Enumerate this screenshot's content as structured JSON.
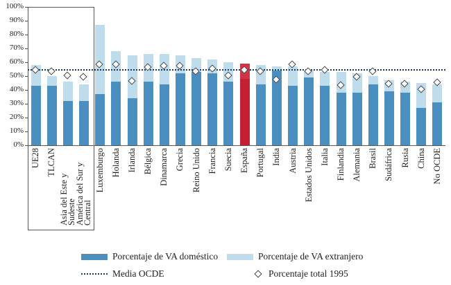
{
  "chart_data": {
    "type": "bar",
    "stacked": true,
    "title": "",
    "xlabel": "",
    "ylabel": "",
    "ylim": [
      0,
      100
    ],
    "grid": false,
    "y_ticks": [
      "0%",
      "10%",
      "20%",
      "30%",
      "40%",
      "50%",
      "60%",
      "70%",
      "80%",
      "90%",
      "100%"
    ],
    "categories": [
      "UE28",
      "TLCAN",
      "Asia del Este y Sudeste",
      "América del Sur y Central",
      "Luxemburgo",
      "Holanda",
      "Irlanda",
      "Bélgica",
      "Dinamarca",
      "Grecia",
      "Reino Unido",
      "Francia",
      "Suecia",
      "España",
      "Portugal",
      "India",
      "Austria",
      "Estados Unidos",
      "Italia",
      "Finlandia",
      "Alemania",
      "Brasil",
      "Sudáfrica",
      "Rusia",
      "China",
      "No OCDE"
    ],
    "series": [
      {
        "name": "Porcentaje de VA doméstico",
        "values": [
          43,
          43,
          32,
          32,
          37,
          46,
          34,
          46,
          44,
          52,
          53,
          52,
          46,
          48,
          44,
          54,
          43,
          49,
          43,
          38,
          38,
          44,
          39,
          38,
          27,
          31
        ]
      },
      {
        "name": "Porcentaje de VA extranjero",
        "values": [
          15,
          7,
          14,
          12,
          50,
          22,
          31,
          20,
          22,
          13,
          10,
          10,
          14,
          11,
          14,
          3,
          14,
          5,
          10,
          15,
          14,
          6,
          8,
          8,
          18,
          13
        ]
      },
      {
        "name": "Porcentaje total 1995",
        "type": "marker",
        "values": [
          54,
          53,
          50,
          49,
          58,
          58,
          46,
          56,
          57,
          57,
          53,
          55,
          50,
          54,
          53,
          47,
          58,
          53,
          54,
          43,
          49,
          53,
          44,
          44,
          40,
          45
        ]
      }
    ],
    "media_ocde_value": 55,
    "highlight_category": "España",
    "region_group_box_count": 4,
    "legend_position": "bottom",
    "colors": {
      "domestic": "#4a8fc0",
      "foreign": "#bedcec",
      "highlight_domestic": "#c41f33",
      "highlight_foreign": "#ce3648",
      "media_line": "#17375e",
      "marker_border": "#444444",
      "axis": "#555555"
    }
  },
  "legend": {
    "domestic": "Porcentaje de VA doméstico",
    "foreign": "Porcentaje de VA extranjero",
    "media": "Media OCDE",
    "total_1995": "Porcentaje total 1995"
  }
}
